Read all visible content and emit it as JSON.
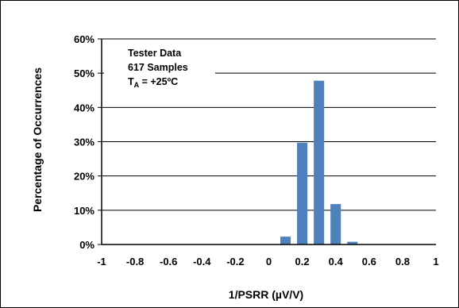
{
  "chart_data": {
    "type": "bar",
    "xlabel": "1/PSRR (µV/V)",
    "ylabel": "Percentage of Occurrences",
    "xlim": [
      -1,
      1
    ],
    "ylim": [
      0,
      60
    ],
    "x_ticks": [
      -1,
      -0.8,
      -0.6,
      -0.4,
      -0.2,
      0,
      0.2,
      0.4,
      0.6,
      0.8,
      1
    ],
    "x_tick_labels": [
      "-1",
      "-0.8",
      "-0.6",
      "-0.4",
      "-0.2",
      "0",
      "0.2",
      "0.4",
      "0.6",
      "0.8",
      "1"
    ],
    "y_ticks": [
      0,
      10,
      20,
      30,
      40,
      50,
      60
    ],
    "y_tick_labels": [
      "0%",
      "10%",
      "20%",
      "30%",
      "40%",
      "50%",
      "60%"
    ],
    "grid": "horizontal",
    "bar_color": "#4f81bd",
    "series": [
      {
        "x": [
          0.1,
          0.2,
          0.3,
          0.4,
          0.5
        ],
        "values": [
          2.3,
          29.7,
          47.8,
          11.8,
          0.8
        ]
      }
    ],
    "annotation": {
      "line1": "Tester Data",
      "line2": "617 Samples",
      "line3_main": "T",
      "line3_sub": "A",
      "line3_rest": " = +25ºC"
    }
  }
}
